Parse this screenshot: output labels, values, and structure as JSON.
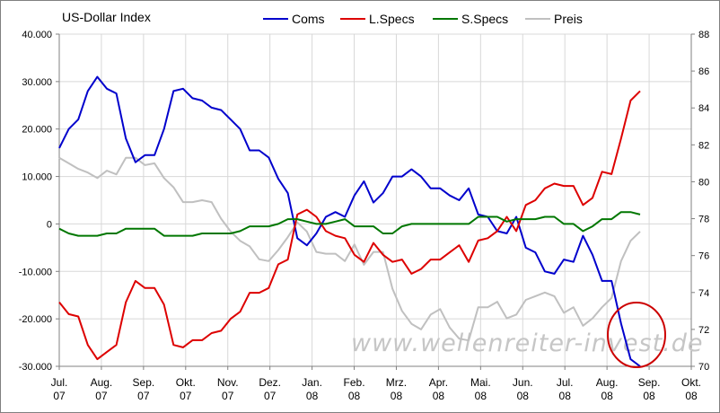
{
  "chart_data": {
    "type": "line",
    "title": "US-Dollar Index",
    "watermark": "www.wellenreiter-invest.de",
    "months": [
      "Jul.\n07",
      "Aug.\n07",
      "Sep.\n07",
      "Okt.\n07",
      "Nov.\n07",
      "Dez.\n07",
      "Jan.\n08",
      "Feb.\n08",
      "Mrz.\n08",
      "Apr.\n08",
      "Mai.\n08",
      "Jun.\n08",
      "Jul.\n08",
      "Aug.\n08",
      "Sep.\n08",
      "Okt.\n08"
    ],
    "yleft": {
      "min": -30000,
      "max": 40000,
      "step": 10000,
      "ticks": [
        "-30.000",
        "-20.000",
        "-10.000",
        "0",
        "10.000",
        "20.000",
        "30.000",
        "40.000"
      ]
    },
    "yright": {
      "min": 70,
      "max": 88,
      "step": 2,
      "ticks": [
        "70",
        "72",
        "74",
        "76",
        "78",
        "80",
        "82",
        "84",
        "86",
        "88"
      ]
    },
    "grid": true,
    "legend_position": "top",
    "series": [
      {
        "name": "Coms",
        "axis": "left",
        "color": "#0000cc",
        "values": [
          16000,
          20000,
          22000,
          28000,
          31000,
          28500,
          27500,
          18000,
          13000,
          14500,
          14500,
          20000,
          28000,
          28500,
          26500,
          26000,
          24500,
          24000,
          22000,
          20000,
          15500,
          15500,
          14000,
          9500,
          6500,
          -3000,
          -4500,
          -2000,
          1500,
          2500,
          1500,
          6000,
          9000,
          4500,
          6500,
          10000,
          10000,
          11500,
          10000,
          7500,
          7500,
          6000,
          5000,
          7500,
          2000,
          1500,
          -1500,
          -2000,
          1500,
          -5000,
          -6000,
          -10000,
          -10500,
          -7500,
          -8000,
          -2500,
          -6500,
          -12000,
          -12000,
          -21000,
          -28500,
          -30000
        ]
      },
      {
        "name": "L.Specs",
        "axis": "left",
        "color": "#dd0000",
        "values": [
          -16500,
          -19000,
          -19500,
          -25500,
          -28500,
          -27000,
          -25500,
          -16500,
          -12000,
          -13500,
          -13500,
          -17000,
          -25500,
          -26000,
          -24500,
          -24500,
          -23000,
          -22500,
          -20000,
          -18500,
          -14500,
          -14500,
          -13500,
          -8500,
          -7500,
          2000,
          3000,
          1500,
          -1500,
          -2500,
          -3000,
          -6500,
          -8000,
          -4000,
          -6500,
          -8000,
          -7500,
          -10500,
          -9500,
          -7500,
          -7500,
          -6000,
          -4500,
          -8000,
          -3500,
          -3000,
          -1500,
          1500,
          -1500,
          4000,
          5000,
          7500,
          8500,
          8000,
          8000,
          4000,
          5500,
          11000,
          10500,
          18000,
          26000,
          28000
        ]
      },
      {
        "name": "S.Specs",
        "axis": "left",
        "color": "#007700",
        "values": [
          -1000,
          -2000,
          -2500,
          -2500,
          -2500,
          -2000,
          -2000,
          -1000,
          -1000,
          -1000,
          -1000,
          -2500,
          -2500,
          -2500,
          -2500,
          -2000,
          -2000,
          -2000,
          -2000,
          -1500,
          -500,
          -500,
          -500,
          0,
          1000,
          1000,
          500,
          0,
          0,
          500,
          1000,
          -500,
          -500,
          -500,
          -2000,
          -2000,
          -500,
          0,
          0,
          0,
          0,
          0,
          0,
          0,
          1500,
          1500,
          1500,
          500,
          1000,
          1000,
          1000,
          1500,
          1500,
          0,
          0,
          -1500,
          -500,
          1000,
          1000,
          2500,
          2500,
          2000
        ]
      },
      {
        "name": "Preis",
        "axis": "right",
        "color": "#c0c0c0",
        "values": [
          81.3,
          81,
          80.7,
          80.5,
          80.2,
          80.6,
          80.4,
          81.3,
          81.3,
          80.9,
          81,
          80.2,
          79.7,
          78.9,
          78.9,
          79,
          78.9,
          78,
          77.3,
          76.8,
          76.5,
          75.8,
          75.7,
          76.3,
          77,
          77.8,
          77.3,
          76.2,
          76.1,
          76.1,
          75.7,
          76.6,
          75.5,
          76.2,
          76.2,
          74.2,
          73,
          72.3,
          72,
          72.8,
          73.1,
          72.1,
          71.5,
          71.4,
          73.2,
          73.2,
          73.5,
          72.6,
          72.8,
          73.6,
          73.8,
          74,
          73.8,
          72.9,
          73.2,
          72.2,
          72.6,
          73.2,
          73.7,
          75.7,
          76.8,
          77.3
        ]
      }
    ]
  }
}
